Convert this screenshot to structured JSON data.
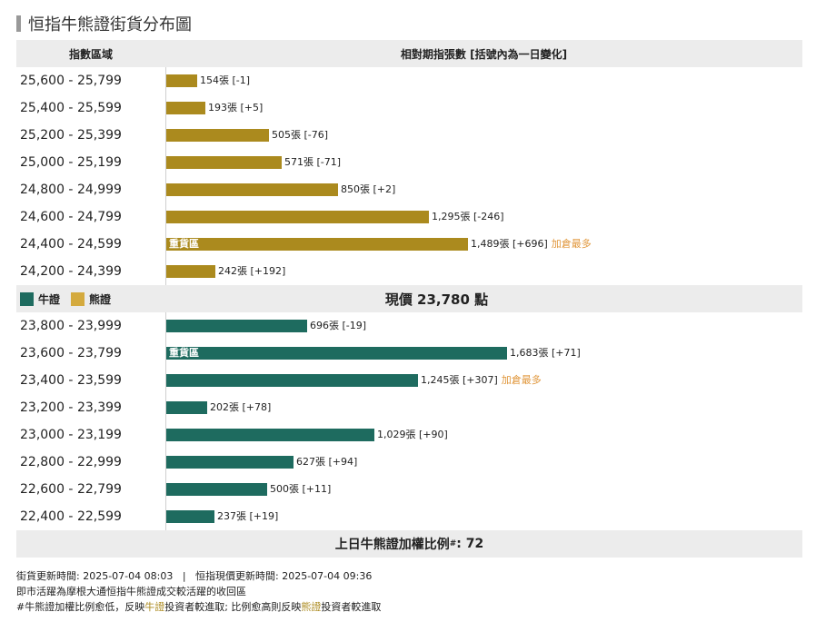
{
  "page_title": "恒指牛熊證街貨分布圖",
  "header": {
    "range_col": "指數區域",
    "value_col": "相對期指張數 [括號內為一日變化]"
  },
  "legend": {
    "bull": "牛證",
    "bear": "熊證"
  },
  "current_price_label": "現價 23,780 點",
  "ratio_label": "上日牛熊證加權比例",
  "ratio_mark": "#",
  "ratio_value": ": 72",
  "heavy_label": "重貨區",
  "most_added_label": "加倉最多",
  "notes": {
    "line1": "街貨更新時間: 2025-07-04 08:03   |   恒指現價更新時間: 2025-07-04 09:36",
    "line2": "即市活躍為摩根大通恒指牛熊證成交較活躍的收回區",
    "line3_a": "#牛熊證加權比例愈低，反映",
    "line3_bull": "牛證",
    "line3_b": "投資者較進取; 比例愈高則反映",
    "line3_bear": "熊證",
    "line3_c": "投資者較進取"
  },
  "colors": {
    "bull": "#1e6b5f",
    "bear": "#ab8a1e",
    "most": "#e0963a"
  },
  "chart_data": {
    "type": "bar",
    "orientation": "horizontal",
    "max_value": 1683,
    "bear": [
      {
        "range": "25,600 - 25,799",
        "value": 154,
        "label": "154張 [-1]",
        "heavy": false,
        "most": false
      },
      {
        "range": "25,400 - 25,599",
        "value": 193,
        "label": "193張 [+5]",
        "heavy": false,
        "most": false
      },
      {
        "range": "25,200 - 25,399",
        "value": 505,
        "label": "505張 [-76]",
        "heavy": false,
        "most": false
      },
      {
        "range": "25,000 - 25,199",
        "value": 571,
        "label": "571張 [-71]",
        "heavy": false,
        "most": false
      },
      {
        "range": "24,800 - 24,999",
        "value": 850,
        "label": "850張 [+2]",
        "heavy": false,
        "most": false
      },
      {
        "range": "24,600 - 24,799",
        "value": 1295,
        "label": "1,295張 [-246]",
        "heavy": false,
        "most": false
      },
      {
        "range": "24,400 - 24,599",
        "value": 1489,
        "label": "1,489張 [+696]",
        "heavy": true,
        "most": true
      },
      {
        "range": "24,200 - 24,399",
        "value": 242,
        "label": "242張 [+192]",
        "heavy": false,
        "most": false
      }
    ],
    "bull": [
      {
        "range": "23,800 - 23,999",
        "value": 696,
        "label": "696張 [-19]",
        "heavy": false,
        "most": false
      },
      {
        "range": "23,600 - 23,799",
        "value": 1683,
        "label": "1,683張 [+71]",
        "heavy": true,
        "most": false
      },
      {
        "range": "23,400 - 23,599",
        "value": 1245,
        "label": "1,245張 [+307]",
        "heavy": false,
        "most": true
      },
      {
        "range": "23,200 - 23,399",
        "value": 202,
        "label": "202張 [+78]",
        "heavy": false,
        "most": false
      },
      {
        "range": "23,000 - 23,199",
        "value": 1029,
        "label": "1,029張 [+90]",
        "heavy": false,
        "most": false
      },
      {
        "range": "22,800 - 22,999",
        "value": 627,
        "label": "627張 [+94]",
        "heavy": false,
        "most": false
      },
      {
        "range": "22,600 - 22,799",
        "value": 500,
        "label": "500張 [+11]",
        "heavy": false,
        "most": false
      },
      {
        "range": "22,400 - 22,599",
        "value": 237,
        "label": "237張 [+19]",
        "heavy": false,
        "most": false
      }
    ]
  }
}
